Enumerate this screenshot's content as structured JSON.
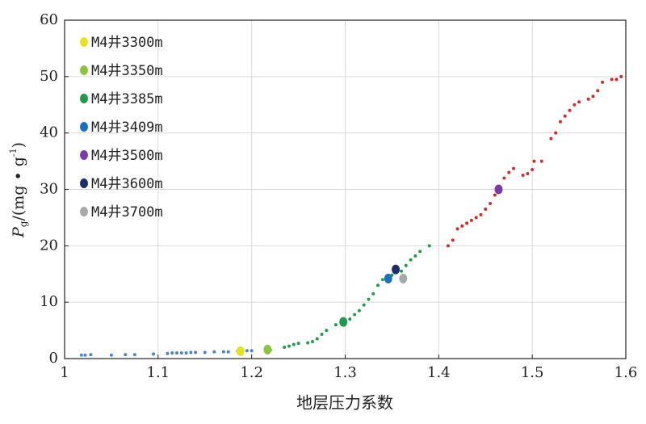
{
  "chart_data": {
    "type": "scatter",
    "x_label": "地层压力系数",
    "y_label": {
      "symbol": "P",
      "subscript": "g",
      "unit": "/(mg • g",
      "superscript": "-1",
      "close": ")"
    },
    "xlim": [
      1,
      1.6
    ],
    "xticks": [
      1,
      1.1,
      1.2,
      1.3,
      1.4,
      1.5,
      1.6
    ],
    "ylim": [
      0,
      60
    ],
    "yticks": [
      0,
      10,
      20,
      30,
      40,
      50,
      60
    ],
    "grid": true,
    "legend": "upper left",
    "series": [
      {
        "color": "#4a86d0",
        "x": [
          1.018,
          1.022,
          1.028,
          1.05,
          1.065,
          1.075,
          1.095,
          1.11,
          1.115,
          1.12,
          1.125,
          1.13,
          1.135,
          1.14,
          1.15,
          1.16,
          1.17,
          1.175,
          1.185,
          1.195,
          1.2
        ],
        "values": [
          0.6,
          0.6,
          0.7,
          0.6,
          0.7,
          0.7,
          0.8,
          0.9,
          1.0,
          1.0,
          1.0,
          1.0,
          1.1,
          1.1,
          1.1,
          1.2,
          1.2,
          1.2,
          1.3,
          1.4,
          1.4
        ]
      },
      {
        "color": "#1e9e4a",
        "x": [
          1.22,
          1.235,
          1.24,
          1.245,
          1.25,
          1.26,
          1.265,
          1.27,
          1.275,
          1.28,
          1.29,
          1.3,
          1.305,
          1.31,
          1.315,
          1.32,
          1.325,
          1.33,
          1.335,
          1.34,
          1.35,
          1.36,
          1.365,
          1.37,
          1.375,
          1.38,
          1.39
        ],
        "values": [
          1.5,
          2.0,
          2.2,
          2.5,
          2.7,
          2.8,
          3.0,
          3.5,
          4.3,
          5.0,
          6.0,
          6.3,
          7.0,
          7.8,
          8.5,
          9.5,
          10.5,
          11.5,
          13.0,
          14.0,
          14.8,
          15.5,
          16.5,
          17.5,
          18.2,
          19.0,
          20.0
        ]
      },
      {
        "color": "#d42a2a",
        "x": [
          1.41,
          1.415,
          1.42,
          1.425,
          1.43,
          1.435,
          1.44,
          1.445,
          1.45,
          1.455,
          1.46,
          1.465,
          1.47,
          1.475,
          1.48,
          1.49,
          1.495,
          1.5,
          1.502,
          1.51,
          1.52,
          1.525,
          1.53,
          1.535,
          1.54,
          1.545,
          1.55,
          1.56,
          1.565,
          1.57,
          1.575,
          1.585,
          1.59,
          1.595
        ],
        "values": [
          20.0,
          21.0,
          23.0,
          23.5,
          24.0,
          24.5,
          25.0,
          25.5,
          26.5,
          27.5,
          29.0,
          30.5,
          32.0,
          33.0,
          33.7,
          32.5,
          32.8,
          33.5,
          35.0,
          35.0,
          39.0,
          40.0,
          42.0,
          43.0,
          44.0,
          45.0,
          45.5,
          46.0,
          46.5,
          47.5,
          49.0,
          49.5,
          49.5,
          50.0
        ]
      },
      {
        "name": "M4井3300m",
        "color": "#e5e31c",
        "x": [
          1.188
        ],
        "values": [
          1.3
        ]
      },
      {
        "name": "M4井3350m",
        "color": "#8cc43f",
        "x": [
          1.217
        ],
        "values": [
          1.6
        ]
      },
      {
        "name": "M4井3385m",
        "color": "#1f9a4b",
        "x": [
          1.298
        ],
        "values": [
          6.5
        ]
      },
      {
        "name": "M4井3409m",
        "color": "#1b6fc0",
        "x": [
          1.346
        ],
        "values": [
          14.2
        ]
      },
      {
        "name": "M4井3500m",
        "color": "#7a3aa8",
        "x": [
          1.464
        ],
        "values": [
          30.0
        ]
      },
      {
        "name": "M4井3600m",
        "color": "#1c2f6b",
        "x": [
          1.354
        ],
        "values": [
          15.8
        ]
      },
      {
        "name": "M4井3700m",
        "color": "#a8a8a8",
        "x": [
          1.362
        ],
        "values": [
          14.2
        ]
      }
    ]
  }
}
